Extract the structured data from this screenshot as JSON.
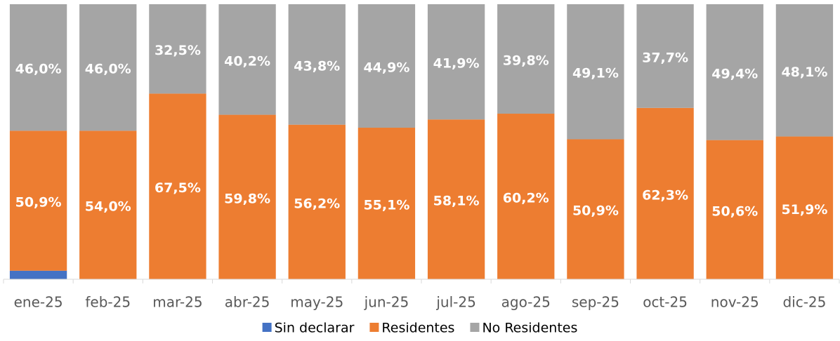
{
  "chart_data": {
    "type": "stacked_bar",
    "categories": [
      "ene-25",
      "feb-25",
      "mar-25",
      "abr-25",
      "may-25",
      "jun-25",
      "jul-25",
      "ago-25",
      "sep-25",
      "oct-25",
      "nov-25",
      "dic-25"
    ],
    "series": [
      {
        "name": "Sin declarar",
        "color": "#4472c4",
        "values": [
          3.1,
          0,
          0,
          0,
          0,
          0,
          0,
          0,
          0,
          0,
          0,
          0
        ]
      },
      {
        "name": "Residentes",
        "color": "#ed7d31",
        "values": [
          50.9,
          54.0,
          67.5,
          59.8,
          56.2,
          55.1,
          58.1,
          60.2,
          50.9,
          62.3,
          50.6,
          51.9
        ],
        "value_labels": [
          "50,9%",
          "54,0%",
          "67,5%",
          "59,8%",
          "56,2%",
          "55,1%",
          "58,1%",
          "60,2%",
          "50,9%",
          "62,3%",
          "50,6%",
          "51,9%"
        ]
      },
      {
        "name": "No Residentes",
        "color": "#a5a5a5",
        "values": [
          46.0,
          46.0,
          32.5,
          40.2,
          43.8,
          44.9,
          41.9,
          39.8,
          49.1,
          37.7,
          49.4,
          48.1
        ],
        "value_labels": [
          "46,0%",
          "46,0%",
          "32,5%",
          "40,2%",
          "43,8%",
          "44,9%",
          "41,9%",
          "39,8%",
          "49,1%",
          "37,7%",
          "49,4%",
          "48,1%"
        ]
      }
    ],
    "ylim": [
      0,
      100
    ],
    "legend": "bottom"
  }
}
